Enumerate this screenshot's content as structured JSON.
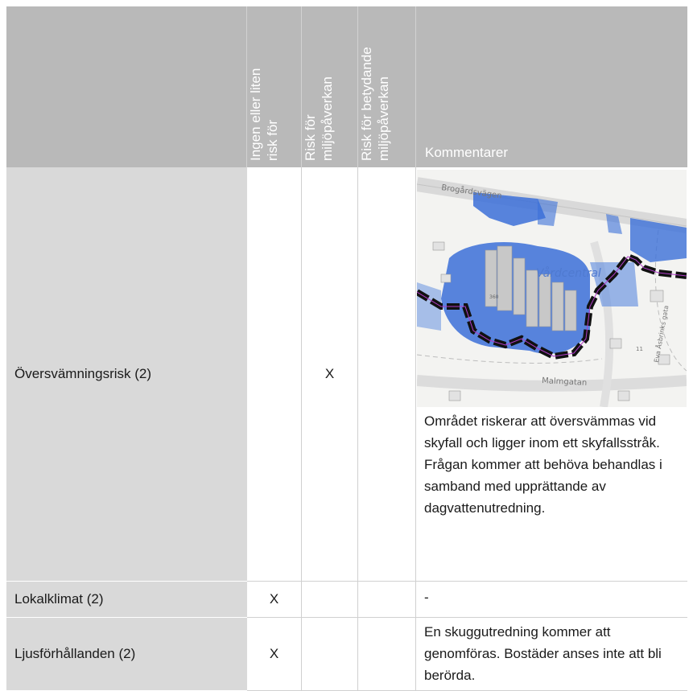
{
  "header": {
    "col1": "",
    "col2": [
      "Ingen eller liten",
      "risk för"
    ],
    "col3": [
      "Risk för",
      "miljöpåverkan"
    ],
    "col4": [
      "Risk för betydande",
      "miljöpåverkan"
    ],
    "col5": "Kommentarer"
  },
  "rows": [
    {
      "label": "Översvämningsrisk (2)",
      "col2": "",
      "col3": "X",
      "col4": "",
      "comment": "Området riskerar att översvämmas vid skyfall och ligger inom ett skyfallsstråk. Frågan kommer att behöva behandlas i samband med upprättande av dagvattenutredning.",
      "map": {
        "labels": {
          "road_top": "Brogårdsvägen",
          "center": "Vårdcentral",
          "road_bottom": "Malmgatan",
          "street_right": "Eva Åsbrinks gata",
          "number1": "11",
          "number2": "360"
        },
        "colors": {
          "water": "#3b6fd8",
          "boundary": "#111111",
          "building": "#c8c8c8"
        }
      }
    },
    {
      "label": "Lokalklimat (2)",
      "col2": "X",
      "col3": "",
      "col4": "",
      "comment": "-"
    },
    {
      "label": "Ljusförhållanden (2)",
      "col2": "X",
      "col3": "",
      "col4": "",
      "comment": "En skuggutredning kommer att genomföras. Bostäder anses inte att bli berörda."
    }
  ]
}
